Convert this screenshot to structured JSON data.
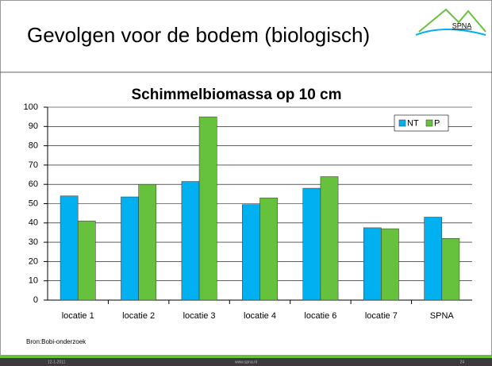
{
  "slide": {
    "title": "Gevolgen voor de bodem (biologisch)",
    "logo": "SPNA",
    "source": "Bron:Bobi-onderzoek",
    "date": "12-1-2011",
    "url": "www.spna.nl",
    "page": "24"
  },
  "chart_data": {
    "type": "bar",
    "title": "Schimmelbiomassa op 10 cm",
    "categories": [
      "locatie 1",
      "locatie 2",
      "locatie 3",
      "locatie 4",
      "locatie 6",
      "locatie 7",
      "SPNA"
    ],
    "series": [
      {
        "name": "NT",
        "color": "#00b0f0",
        "values": [
          54,
          53.5,
          61.5,
          49.5,
          58,
          37.5,
          43
        ]
      },
      {
        "name": "P",
        "color": "#66c23c",
        "values": [
          41,
          60,
          95,
          53,
          64,
          37,
          32
        ]
      }
    ],
    "ylim": [
      0,
      100
    ],
    "yticks": [
      0,
      10,
      20,
      30,
      40,
      50,
      60,
      70,
      80,
      90,
      100
    ],
    "grid": true,
    "legend": "top-right"
  }
}
